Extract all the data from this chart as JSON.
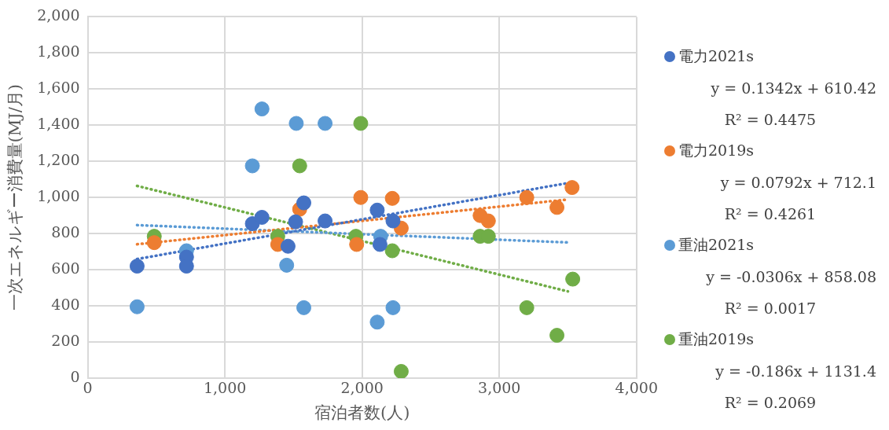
{
  "chart_data": {
    "type": "scatter",
    "xlabel": "宿泊者数(人)",
    "ylabel": "一次エネルギー消費量(MJ/月)",
    "xlim": [
      0,
      4000
    ],
    "xticks": [
      0,
      {
        "value": 1000,
        "label": "1,000"
      },
      {
        "value": 2000,
        "label": "2,000"
      },
      {
        "value": 3000,
        "label": "3,000"
      },
      {
        "value": 4000,
        "label": "4,000"
      }
    ],
    "ylim": [
      0,
      2000
    ],
    "yticks": [
      0,
      200,
      400,
      600,
      800,
      {
        "value": 1000,
        "label": "1,000"
      },
      {
        "value": 1200,
        "label": "1,200"
      },
      {
        "value": 1400,
        "label": "1,400"
      },
      {
        "value": 1600,
        "label": "1,600"
      },
      {
        "value": 1800,
        "label": "1,800"
      },
      {
        "value": 2000,
        "label": "2,000"
      }
    ],
    "grid": true,
    "legend": "right",
    "marker": "circle",
    "series": [
      {
        "name": "電力2021s",
        "color": "#4472c4",
        "x": [
          360,
          720,
          720,
          1200,
          1270,
          1460,
          1515,
          1575,
          1730,
          2110,
          2130,
          2225
        ],
        "values": [
          620,
          670,
          620,
          855,
          890,
          730,
          865,
          970,
          870,
          930,
          740,
          870
        ]
      },
      {
        "name": "電力2019s",
        "color": "#ed7d31",
        "x": [
          485,
          1385,
          1545,
          1960,
          1990,
          2220,
          2285,
          2860,
          2920,
          3200,
          3420,
          3530
        ],
        "values": [
          750,
          740,
          935,
          740,
          1000,
          995,
          830,
          900,
          870,
          1000,
          945,
          1055
        ]
      },
      {
        "name": "重油2021s",
        "color": "#5b9bd5",
        "x": [
          360,
          720,
          1270,
          1200,
          1520,
          1730,
          1450,
          1575,
          2110,
          2135,
          2225
        ],
        "values": [
          395,
          705,
          1490,
          1175,
          1410,
          1410,
          625,
          390,
          310,
          785,
          390
        ]
      },
      {
        "name": "重油2019s",
        "color": "#70ad47",
        "x": [
          485,
          1545,
          1990,
          1385,
          1955,
          2220,
          2285,
          2860,
          2920,
          3200,
          3420,
          3535
        ],
        "values": [
          785,
          1175,
          1410,
          785,
          785,
          705,
          37,
          785,
          785,
          390,
          237,
          548
        ]
      },
      {
        "type": "line",
        "marker": "none",
        "line_style": "dotted",
        "color": "#4472c4",
        "x": [
          360,
          3500
        ],
        "values": [
          659,
          1080
        ]
      },
      {
        "type": "line",
        "marker": "none",
        "line_style": "dotted",
        "color": "#ed7d31",
        "x": [
          360,
          3500
        ],
        "values": [
          741,
          989
        ]
      },
      {
        "type": "line",
        "marker": "none",
        "line_style": "dotted",
        "color": "#5b9bd5",
        "x": [
          360,
          3500
        ],
        "values": [
          847,
          751
        ]
      },
      {
        "type": "line",
        "marker": "none",
        "line_style": "dotted",
        "color": "#70ad47",
        "x": [
          360,
          3500
        ],
        "values": [
          1064,
          480
        ]
      }
    ],
    "annotations": [
      "y = 0.1342x + 610.42",
      "R² = 0.4475",
      "y = 0.0792x + 712.1",
      "R² = 0.4261",
      "y = -0.0306x + 858.08",
      "R² = 0.0017",
      "y = -0.186x + 1131.4",
      "R² = 0.2069"
    ]
  }
}
